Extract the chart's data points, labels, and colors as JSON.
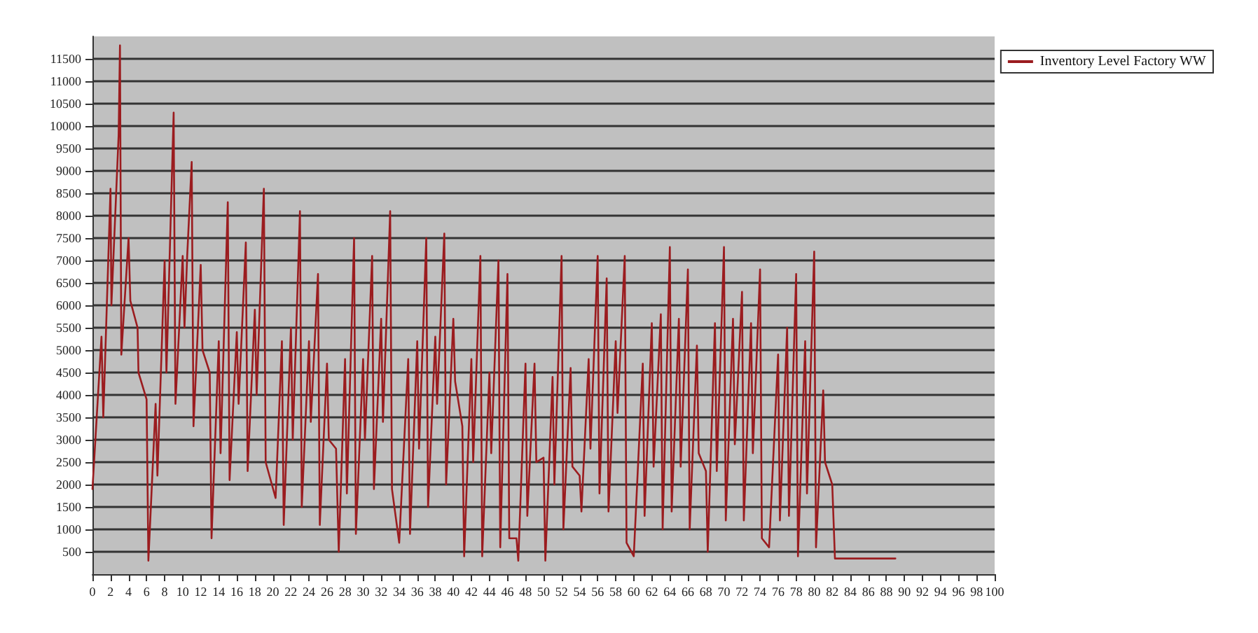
{
  "chart_data": {
    "type": "line",
    "xlim": [
      0,
      100
    ],
    "xticks": [
      0,
      2,
      4,
      6,
      8,
      10,
      12,
      14,
      16,
      18,
      20,
      22,
      24,
      26,
      28,
      30,
      32,
      34,
      36,
      38,
      40,
      42,
      44,
      46,
      48,
      50,
      52,
      54,
      56,
      58,
      60,
      62,
      64,
      66,
      68,
      70,
      72,
      74,
      76,
      78,
      80,
      82,
      84,
      86,
      88,
      90,
      92,
      94,
      96,
      98,
      100
    ],
    "ylim": [
      0,
      12000
    ],
    "yticks": [
      500,
      1000,
      1500,
      2000,
      2500,
      3000,
      3500,
      4000,
      4500,
      5000,
      5500,
      6000,
      6500,
      7000,
      7500,
      8000,
      8500,
      9000,
      9500,
      10000,
      10500,
      11000,
      11500
    ],
    "grid": "y",
    "legend": "top right",
    "marker": "none",
    "line_style": "solid",
    "series": [
      {
        "name": "Inventory Level Factory WW",
        "color": "#9b1c1f",
        "x": [
          0,
          1,
          1.2,
          2,
          2.1,
          2.9,
          3.05,
          3.2,
          4,
          4.2,
          5,
          5.1,
          6,
          6.2,
          7,
          7.2,
          8,
          8.2,
          9,
          9.2,
          10,
          10.2,
          10.5,
          11,
          11.2,
          12,
          12.2,
          13,
          13.2,
          14,
          14.2,
          15,
          15.2,
          16,
          16.2,
          17,
          17.2,
          18,
          18.2,
          19,
          19.2,
          20.3,
          21,
          21.2,
          22,
          22.2,
          23,
          23.2,
          24,
          24.2,
          25,
          25.2,
          26,
          26.2,
          27,
          27.3,
          28,
          28.2,
          29,
          29.2,
          30,
          30.2,
          31,
          31.2,
          32,
          32.2,
          33,
          33.2,
          34,
          35,
          35.2,
          36,
          36.2,
          37,
          37.2,
          38,
          38.2,
          39,
          39.2,
          40,
          40.2,
          41,
          41.2,
          42,
          42.2,
          43,
          43.2,
          44,
          44.2,
          45,
          45.2,
          46,
          46.2,
          47,
          47.2,
          48,
          48.2,
          49,
          49.2,
          50,
          50.2,
          51,
          51.2,
          52,
          52.2,
          53,
          53.2,
          54,
          54.2,
          55,
          55.2,
          56,
          56.2,
          57,
          57.2,
          58,
          58.2,
          59,
          59.2,
          60,
          61,
          61.2,
          62,
          62.2,
          63,
          63.2,
          64,
          64.2,
          65,
          65.2,
          66,
          66.2,
          67,
          67.2,
          68,
          68.2,
          69,
          69.2,
          70,
          70.2,
          71,
          71.2,
          72,
          72.2,
          73,
          73.2,
          74,
          74.2,
          75,
          76,
          76.2,
          77,
          77.2,
          78,
          78.2,
          79,
          79.2,
          80,
          80.2,
          81,
          81.2,
          82,
          82.3,
          89
        ],
        "values": [
          1900,
          5300,
          3500,
          8600,
          6000,
          9800,
          11800,
          4900,
          7500,
          6100,
          5500,
          4500,
          3900,
          300,
          3800,
          2200,
          7000,
          4500,
          10300,
          3800,
          7100,
          5500,
          7100,
          9200,
          3300,
          6900,
          5000,
          4500,
          800,
          5200,
          2700,
          8300,
          2100,
          5400,
          3800,
          7400,
          2300,
          5900,
          4000,
          8600,
          2500,
          1700,
          5200,
          1100,
          5500,
          3000,
          8100,
          1500,
          5200,
          3400,
          6700,
          1100,
          4700,
          3000,
          2800,
          500,
          4800,
          1800,
          7500,
          900,
          4800,
          3000,
          7100,
          1900,
          5700,
          3400,
          8100,
          1900,
          700,
          4800,
          900,
          5200,
          2800,
          7500,
          1500,
          5300,
          3800,
          7600,
          2000,
          5700,
          4300,
          3300,
          400,
          4800,
          2500,
          7100,
          400,
          4500,
          2700,
          7000,
          600,
          6700,
          800,
          800,
          300,
          4700,
          1300,
          4700,
          2500,
          2600,
          300,
          4400,
          2000,
          7100,
          1000,
          4600,
          2400,
          2200,
          1400,
          4800,
          2800,
          7100,
          1800,
          6600,
          1400,
          5200,
          3600,
          7100,
          700,
          400,
          4700,
          1300,
          5600,
          2400,
          5800,
          1000,
          7300,
          1400,
          5700,
          2400,
          6800,
          1000,
          5100,
          2700,
          2300,
          500,
          5600,
          2300,
          7300,
          1200,
          5700,
          2900,
          6300,
          1200,
          5600,
          2700,
          6800,
          800,
          600,
          4900,
          1200,
          5500,
          1300,
          6700,
          400,
          5200,
          1800,
          7200,
          600,
          4100,
          2500,
          2000,
          350,
          350
        ]
      }
    ]
  }
}
